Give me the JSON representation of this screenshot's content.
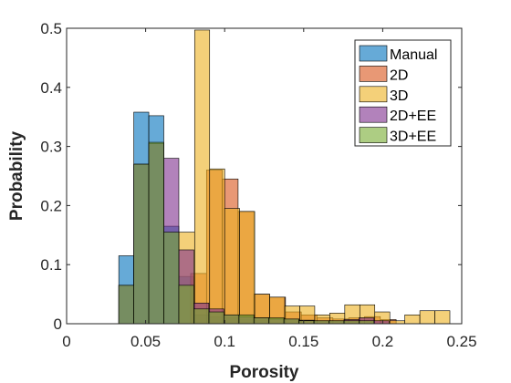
{
  "chart_data": {
    "type": "bar",
    "subtype": "overlapping-histogram",
    "xlabel": "Porosity",
    "ylabel": "Probability",
    "xlim": [
      0,
      0.25
    ],
    "ylim": [
      0,
      0.5
    ],
    "xticks": [
      0,
      0.05,
      0.1,
      0.15,
      0.2,
      0.25
    ],
    "xtick_labels": [
      "0",
      "0.05",
      "0.1",
      "0.15",
      "0.2",
      "0.25"
    ],
    "yticks": [
      0,
      0.1,
      0.2,
      0.3,
      0.4,
      0.5
    ],
    "ytick_labels": [
      "0",
      "0.1",
      "0.2",
      "0.3",
      "0.4",
      "0.5"
    ],
    "legend_position": "top-right",
    "grid": false,
    "series": [
      {
        "name": "Manual",
        "color": "#0072BD",
        "bins": [
          {
            "x0": 0.033,
            "x1": 0.0425,
            "y": 0.115
          },
          {
            "x0": 0.0425,
            "x1": 0.052,
            "y": 0.358
          },
          {
            "x0": 0.052,
            "x1": 0.0615,
            "y": 0.352
          },
          {
            "x0": 0.0615,
            "x1": 0.071,
            "y": 0.165
          },
          {
            "x0": 0.071,
            "x1": 0.0805,
            "y": 0.08
          },
          {
            "x0": 0.0805,
            "x1": 0.09,
            "y": 0.015
          },
          {
            "x0": 0.09,
            "x1": 0.0995,
            "y": 0.012
          },
          {
            "x0": 0.0995,
            "x1": 0.109,
            "y": 0.01
          },
          {
            "x0": 0.109,
            "x1": 0.1185,
            "y": 0.008
          },
          {
            "x0": 0.1185,
            "x1": 0.128,
            "y": 0.005
          }
        ]
      },
      {
        "name": "2D",
        "color": "#D95319",
        "bins": [
          {
            "x0": 0.0785,
            "x1": 0.0885,
            "y": 0.085
          },
          {
            "x0": 0.0885,
            "x1": 0.0985,
            "y": 0.26
          },
          {
            "x0": 0.0985,
            "x1": 0.1085,
            "y": 0.245
          },
          {
            "x0": 0.1085,
            "x1": 0.1185,
            "y": 0.19
          },
          {
            "x0": 0.1185,
            "x1": 0.1285,
            "y": 0.05
          },
          {
            "x0": 0.1285,
            "x1": 0.1385,
            "y": 0.045
          },
          {
            "x0": 0.1385,
            "x1": 0.1485,
            "y": 0.02
          },
          {
            "x0": 0.1485,
            "x1": 0.1585,
            "y": 0.015
          },
          {
            "x0": 0.1585,
            "x1": 0.1685,
            "y": 0.01
          },
          {
            "x0": 0.1685,
            "x1": 0.1785,
            "y": 0.008
          },
          {
            "x0": 0.1785,
            "x1": 0.1885,
            "y": 0.01
          },
          {
            "x0": 0.1885,
            "x1": 0.1985,
            "y": 0.012
          },
          {
            "x0": 0.1985,
            "x1": 0.2085,
            "y": 0.007
          }
        ]
      },
      {
        "name": "3D",
        "color": "#EDB120",
        "bins": [
          {
            "x0": 0.071,
            "x1": 0.081,
            "y": 0.155
          },
          {
            "x0": 0.081,
            "x1": 0.0905,
            "y": 0.497
          },
          {
            "x0": 0.0905,
            "x1": 0.1,
            "y": 0.262
          },
          {
            "x0": 0.1,
            "x1": 0.1095,
            "y": 0.195
          },
          {
            "x0": 0.1095,
            "x1": 0.119,
            "y": 0.19
          },
          {
            "x0": 0.119,
            "x1": 0.1285,
            "y": 0.05
          },
          {
            "x0": 0.1285,
            "x1": 0.138,
            "y": 0.045
          },
          {
            "x0": 0.138,
            "x1": 0.1475,
            "y": 0.03
          },
          {
            "x0": 0.1475,
            "x1": 0.157,
            "y": 0.03
          },
          {
            "x0": 0.157,
            "x1": 0.1665,
            "y": 0.015
          },
          {
            "x0": 0.1665,
            "x1": 0.176,
            "y": 0.018
          },
          {
            "x0": 0.176,
            "x1": 0.1855,
            "y": 0.032
          },
          {
            "x0": 0.1855,
            "x1": 0.195,
            "y": 0.032
          },
          {
            "x0": 0.195,
            "x1": 0.2045,
            "y": 0.02
          },
          {
            "x0": 0.2045,
            "x1": 0.214,
            "y": 0.005
          },
          {
            "x0": 0.214,
            "x1": 0.2235,
            "y": 0.015
          },
          {
            "x0": 0.2235,
            "x1": 0.233,
            "y": 0.022
          },
          {
            "x0": 0.233,
            "x1": 0.2425,
            "y": 0.022
          }
        ]
      },
      {
        "name": "2D+EE",
        "color": "#7E2F8E",
        "bins": [
          {
            "x0": 0.033,
            "x1": 0.0425,
            "y": 0.065
          },
          {
            "x0": 0.0425,
            "x1": 0.052,
            "y": 0.27
          },
          {
            "x0": 0.052,
            "x1": 0.0615,
            "y": 0.305
          },
          {
            "x0": 0.0615,
            "x1": 0.071,
            "y": 0.28
          },
          {
            "x0": 0.071,
            "x1": 0.0805,
            "y": 0.125
          },
          {
            "x0": 0.0805,
            "x1": 0.09,
            "y": 0.035
          },
          {
            "x0": 0.09,
            "x1": 0.0995,
            "y": 0.025
          },
          {
            "x0": 0.0995,
            "x1": 0.109,
            "y": 0.015
          },
          {
            "x0": 0.109,
            "x1": 0.1185,
            "y": 0.012
          },
          {
            "x0": 0.1185,
            "x1": 0.128,
            "y": 0.01
          },
          {
            "x0": 0.128,
            "x1": 0.1375,
            "y": 0.008
          },
          {
            "x0": 0.1375,
            "x1": 0.147,
            "y": 0.008
          },
          {
            "x0": 0.147,
            "x1": 0.1565,
            "y": 0.006
          },
          {
            "x0": 0.1565,
            "x1": 0.166,
            "y": 0.005
          },
          {
            "x0": 0.166,
            "x1": 0.1755,
            "y": 0.005
          },
          {
            "x0": 0.1755,
            "x1": 0.185,
            "y": 0.007
          },
          {
            "x0": 0.185,
            "x1": 0.1945,
            "y": 0.01
          },
          {
            "x0": 0.1945,
            "x1": 0.204,
            "y": 0.005
          }
        ]
      },
      {
        "name": "3D+EE",
        "color": "#77AC30",
        "bins": [
          {
            "x0": 0.033,
            "x1": 0.0425,
            "y": 0.065
          },
          {
            "x0": 0.0425,
            "x1": 0.052,
            "y": 0.27
          },
          {
            "x0": 0.052,
            "x1": 0.0615,
            "y": 0.307
          },
          {
            "x0": 0.0615,
            "x1": 0.071,
            "y": 0.155
          },
          {
            "x0": 0.071,
            "x1": 0.0805,
            "y": 0.065
          },
          {
            "x0": 0.0805,
            "x1": 0.09,
            "y": 0.025
          },
          {
            "x0": 0.09,
            "x1": 0.0995,
            "y": 0.02
          },
          {
            "x0": 0.0995,
            "x1": 0.109,
            "y": 0.015
          },
          {
            "x0": 0.109,
            "x1": 0.1185,
            "y": 0.015
          },
          {
            "x0": 0.1185,
            "x1": 0.128,
            "y": 0.01
          },
          {
            "x0": 0.128,
            "x1": 0.1375,
            "y": 0.01
          },
          {
            "x0": 0.1375,
            "x1": 0.147,
            "y": 0.008
          },
          {
            "x0": 0.147,
            "x1": 0.1565,
            "y": 0.005
          },
          {
            "x0": 0.1565,
            "x1": 0.166,
            "y": 0.005
          },
          {
            "x0": 0.166,
            "x1": 0.1755,
            "y": 0.005
          },
          {
            "x0": 0.1755,
            "x1": 0.185,
            "y": 0.005
          },
          {
            "x0": 0.185,
            "x1": 0.1945,
            "y": 0.005
          }
        ]
      }
    ]
  }
}
